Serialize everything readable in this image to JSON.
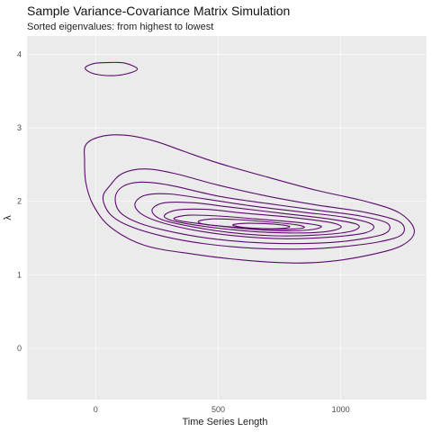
{
  "chart_data": {
    "type": "contour",
    "title": "Sample Variance-Covariance Matrix Simulation",
    "subtitle": "Sorted eigenvalues: from highest to lowest",
    "xlabel": "Time Series Length",
    "ylabel": "λ",
    "xlim": [
      -280,
      1350
    ],
    "ylim": [
      -0.7,
      4.25
    ],
    "x_ticks": [
      0,
      500,
      1000
    ],
    "y_ticks": [
      0,
      1,
      2,
      3,
      4
    ],
    "grid": "major lines white on grey background",
    "colors": {
      "panel": "#ebebeb",
      "grid": "#ffffff",
      "contour": "#5b0a6b"
    },
    "contours": [
      {
        "points": [
          [
            -35,
            3.78
          ],
          [
            0,
            3.73
          ],
          [
            60,
            3.71
          ],
          [
            120,
            3.73
          ],
          [
            170,
            3.8
          ],
          [
            120,
            3.88
          ],
          [
            60,
            3.89
          ],
          [
            0,
            3.88
          ],
          [
            -40,
            3.83
          ]
        ]
      },
      {
        "points": [
          [
            -40,
            2.77
          ],
          [
            20,
            2.88
          ],
          [
            120,
            2.9
          ],
          [
            240,
            2.82
          ],
          [
            360,
            2.68
          ],
          [
            500,
            2.52
          ],
          [
            700,
            2.33
          ],
          [
            900,
            2.15
          ],
          [
            1100,
            2.0
          ],
          [
            1240,
            1.84
          ],
          [
            1300,
            1.6
          ],
          [
            1250,
            1.4
          ],
          [
            1120,
            1.27
          ],
          [
            950,
            1.18
          ],
          [
            800,
            1.16
          ],
          [
            600,
            1.2
          ],
          [
            400,
            1.28
          ],
          [
            200,
            1.4
          ],
          [
            60,
            1.65
          ],
          [
            -10,
            1.95
          ],
          [
            -40,
            2.25
          ],
          [
            -45,
            2.55
          ]
        ]
      },
      {
        "points": [
          [
            30,
            2.05
          ],
          [
            60,
            2.22
          ],
          [
            110,
            2.38
          ],
          [
            200,
            2.44
          ],
          [
            320,
            2.38
          ],
          [
            500,
            2.22
          ],
          [
            700,
            2.07
          ],
          [
            900,
            1.95
          ],
          [
            1100,
            1.85
          ],
          [
            1240,
            1.72
          ],
          [
            1250,
            1.55
          ],
          [
            1160,
            1.45
          ],
          [
            1000,
            1.38
          ],
          [
            850,
            1.35
          ],
          [
            650,
            1.36
          ],
          [
            450,
            1.42
          ],
          [
            280,
            1.52
          ],
          [
            140,
            1.66
          ],
          [
            60,
            1.82
          ]
        ]
      },
      {
        "points": [
          [
            80,
            2.05
          ],
          [
            110,
            2.2
          ],
          [
            180,
            2.26
          ],
          [
            300,
            2.22
          ],
          [
            500,
            2.07
          ],
          [
            700,
            1.97
          ],
          [
            900,
            1.88
          ],
          [
            1080,
            1.8
          ],
          [
            1190,
            1.7
          ],
          [
            1180,
            1.56
          ],
          [
            1050,
            1.47
          ],
          [
            900,
            1.43
          ],
          [
            700,
            1.43
          ],
          [
            500,
            1.48
          ],
          [
            330,
            1.57
          ],
          [
            180,
            1.7
          ],
          [
            100,
            1.85
          ]
        ]
      },
      {
        "points": [
          [
            160,
            1.96
          ],
          [
            200,
            2.08
          ],
          [
            300,
            2.1
          ],
          [
            450,
            2.03
          ],
          [
            650,
            1.93
          ],
          [
            850,
            1.85
          ],
          [
            1020,
            1.78
          ],
          [
            1130,
            1.68
          ],
          [
            1100,
            1.57
          ],
          [
            950,
            1.51
          ],
          [
            780,
            1.49
          ],
          [
            600,
            1.52
          ],
          [
            430,
            1.59
          ],
          [
            280,
            1.7
          ],
          [
            190,
            1.82
          ]
        ]
      },
      {
        "points": [
          [
            230,
            1.88
          ],
          [
            280,
            1.98
          ],
          [
            400,
            1.98
          ],
          [
            550,
            1.92
          ],
          [
            750,
            1.84
          ],
          [
            950,
            1.76
          ],
          [
            1070,
            1.68
          ],
          [
            1040,
            1.59
          ],
          [
            900,
            1.54
          ],
          [
            730,
            1.53
          ],
          [
            560,
            1.57
          ],
          [
            400,
            1.65
          ],
          [
            270,
            1.75
          ]
        ]
      },
      {
        "points": [
          [
            280,
            1.8
          ],
          [
            330,
            1.88
          ],
          [
            450,
            1.89
          ],
          [
            600,
            1.84
          ],
          [
            800,
            1.78
          ],
          [
            960,
            1.71
          ],
          [
            1000,
            1.64
          ],
          [
            920,
            1.58
          ],
          [
            760,
            1.57
          ],
          [
            600,
            1.6
          ],
          [
            440,
            1.66
          ],
          [
            320,
            1.73
          ]
        ]
      },
      {
        "points": [
          [
            320,
            1.77
          ],
          [
            380,
            1.81
          ],
          [
            500,
            1.8
          ],
          [
            650,
            1.76
          ],
          [
            830,
            1.71
          ],
          [
            920,
            1.66
          ],
          [
            870,
            1.61
          ],
          [
            740,
            1.6
          ],
          [
            600,
            1.63
          ],
          [
            460,
            1.68
          ],
          [
            350,
            1.73
          ]
        ]
      },
      {
        "points": [
          [
            420,
            1.73
          ],
          [
            480,
            1.76
          ],
          [
            580,
            1.75
          ],
          [
            700,
            1.72
          ],
          [
            820,
            1.68
          ],
          [
            850,
            1.64
          ],
          [
            780,
            1.62
          ],
          [
            650,
            1.63
          ],
          [
            520,
            1.66
          ],
          [
            440,
            1.69
          ]
        ]
      },
      {
        "points": [
          [
            560,
            1.68
          ],
          [
            620,
            1.7
          ],
          [
            720,
            1.69
          ],
          [
            790,
            1.66
          ],
          [
            760,
            1.63
          ],
          [
            660,
            1.63
          ],
          [
            590,
            1.65
          ]
        ]
      }
    ]
  }
}
